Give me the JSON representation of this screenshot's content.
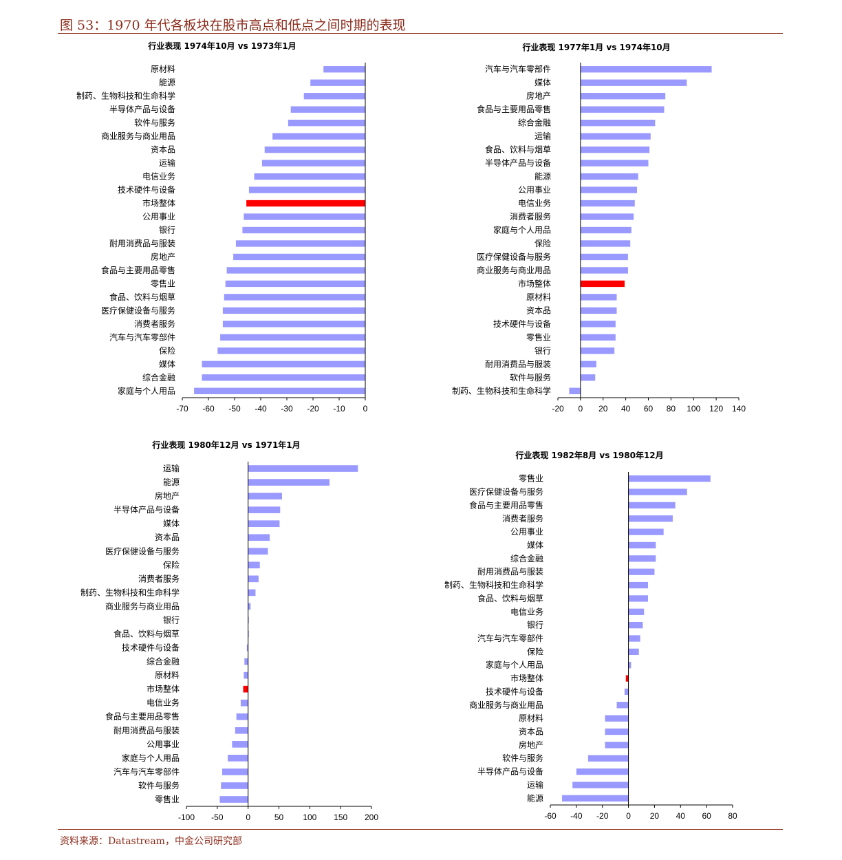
{
  "figure": {
    "title": "图 53：1970 年代各板块在股市高点和低点之间时期的表现",
    "source": "资料来源：Datastream，中金公司研究部"
  },
  "colors": {
    "bar": "#9999ff",
    "highlight": "#ff0000",
    "accent": "#8b2a1a"
  },
  "chart_data": [
    {
      "type": "bar",
      "orientation": "horizontal",
      "title": "行业表现 1974年10月 vs 1973年1月",
      "categories": [
        "原材料",
        "能源",
        "制药、生物科技和生命科学",
        "半导体产品与设备",
        "软件与服务",
        "商业服务与商业用品",
        "资本品",
        "运输",
        "电信业务",
        "技术硬件与设备",
        "市场整体",
        "公用事业",
        "银行",
        "耐用消费品与服装",
        "房地产",
        "食品与主要用品零售",
        "零售业",
        "食品、饮料与烟草",
        "医疗保健设备与服务",
        "消费者服务",
        "汽车与汽车零部件",
        "保险",
        "媒体",
        "综合金融",
        "家庭与个人用品"
      ],
      "values": [
        -16,
        -21,
        -23.5,
        -28.5,
        -29.5,
        -35.5,
        -38.5,
        -39.5,
        -42.5,
        -44.5,
        -45.5,
        -46.5,
        -47,
        -49.5,
        -50.5,
        -53,
        -53.5,
        -54,
        -54.5,
        -54.5,
        -55.5,
        -56.5,
        -62.5,
        -62.5,
        -65.5
      ],
      "highlight": "市场整体",
      "xlim": [
        -70,
        0
      ],
      "xticks": [
        "-70",
        "-60",
        "-50",
        "-40",
        "-30",
        "-20",
        "-10",
        "0"
      ]
    },
    {
      "type": "bar",
      "orientation": "horizontal",
      "title": "行业表现 1977年1月 vs 1974年10月",
      "categories": [
        "汽车与汽车零部件",
        "媒体",
        "房地产",
        "食品与主要用品零售",
        "综合金融",
        "运输",
        "食品、饮料与烟草",
        "半导体产品与设备",
        "能源",
        "公用事业",
        "电信业务",
        "消费者服务",
        "家庭与个人用品",
        "保险",
        "医疗保健设备与服务",
        "商业服务与商业用品",
        "市场整体",
        "原材料",
        "资本品",
        "技术硬件与设备",
        "零售业",
        "银行",
        "耐用消费品与服装",
        "软件与服务",
        "制药、生物科技和生命科学"
      ],
      "values": [
        116,
        94,
        75,
        74,
        66,
        62,
        61,
        60,
        51,
        50,
        48,
        47,
        45,
        44,
        42,
        42,
        39,
        32,
        32,
        31,
        31,
        30,
        14,
        13,
        -10
      ],
      "highlight": "市场整体",
      "xlim": [
        -20,
        140
      ],
      "xticks": [
        "-20",
        "0",
        "20",
        "40",
        "60",
        "80",
        "100",
        "120",
        "140"
      ]
    },
    {
      "type": "bar",
      "orientation": "horizontal",
      "title": "行业表现 1980年12月 vs 1971年1月",
      "categories": [
        "运输",
        "能源",
        "房地产",
        "半导体产品与设备",
        "媒体",
        "资本品",
        "医疗保健设备与服务",
        "保险",
        "消费者服务",
        "制药、生物科技和生命科学",
        "商业服务与商业用品",
        "银行",
        "食品、饮料与烟草",
        "技术硬件与设备",
        "综合金融",
        "原材料",
        "市场整体",
        "电信业务",
        "食品与主要用品零售",
        "耐用消费品与服装",
        "公用事业",
        "家庭与个人用品",
        "汽车与汽车零部件",
        "软件与服务",
        "零售业"
      ],
      "values": [
        178,
        132,
        55,
        52,
        51,
        35,
        32,
        19,
        17,
        12,
        4,
        1,
        0.5,
        -2,
        -6,
        -7,
        -8,
        -12,
        -19,
        -21,
        -26,
        -33,
        -42,
        -44,
        -46
      ],
      "highlight": "市场整体",
      "xlim": [
        -100,
        200
      ],
      "xticks": [
        "-100",
        "-50",
        "0",
        "50",
        "100",
        "150",
        "200"
      ]
    },
    {
      "type": "bar",
      "orientation": "horizontal",
      "title": "行业表现 1982年8月 vs 1980年12月",
      "categories": [
        "零售业",
        "医疗保健设备与服务",
        "食品与主要用品零售",
        "消费者服务",
        "公用事业",
        "媒体",
        "综合金融",
        "耐用消费品与服装",
        "制药、生物科技和生命科学",
        "食品、饮料与烟草",
        "电信业务",
        "银行",
        "汽车与汽车零部件",
        "保险",
        "家庭与个人用品",
        "市场整体",
        "技术硬件与设备",
        "商业服务与商业用品",
        "原材料",
        "资本品",
        "房地产",
        "软件与服务",
        "半导体产品与设备",
        "运输",
        "能源"
      ],
      "values": [
        63,
        45,
        36,
        34,
        27,
        21,
        21,
        20,
        15,
        15,
        12,
        11,
        9,
        8,
        2,
        -2,
        -3,
        -9,
        -18,
        -18,
        -18,
        -31,
        -40,
        -43,
        -51
      ],
      "highlight": "市场整体",
      "xlim": [
        -60,
        80
      ],
      "xticks": [
        "-60",
        "-40",
        "-20",
        "0",
        "20",
        "40",
        "60",
        "80"
      ]
    }
  ]
}
